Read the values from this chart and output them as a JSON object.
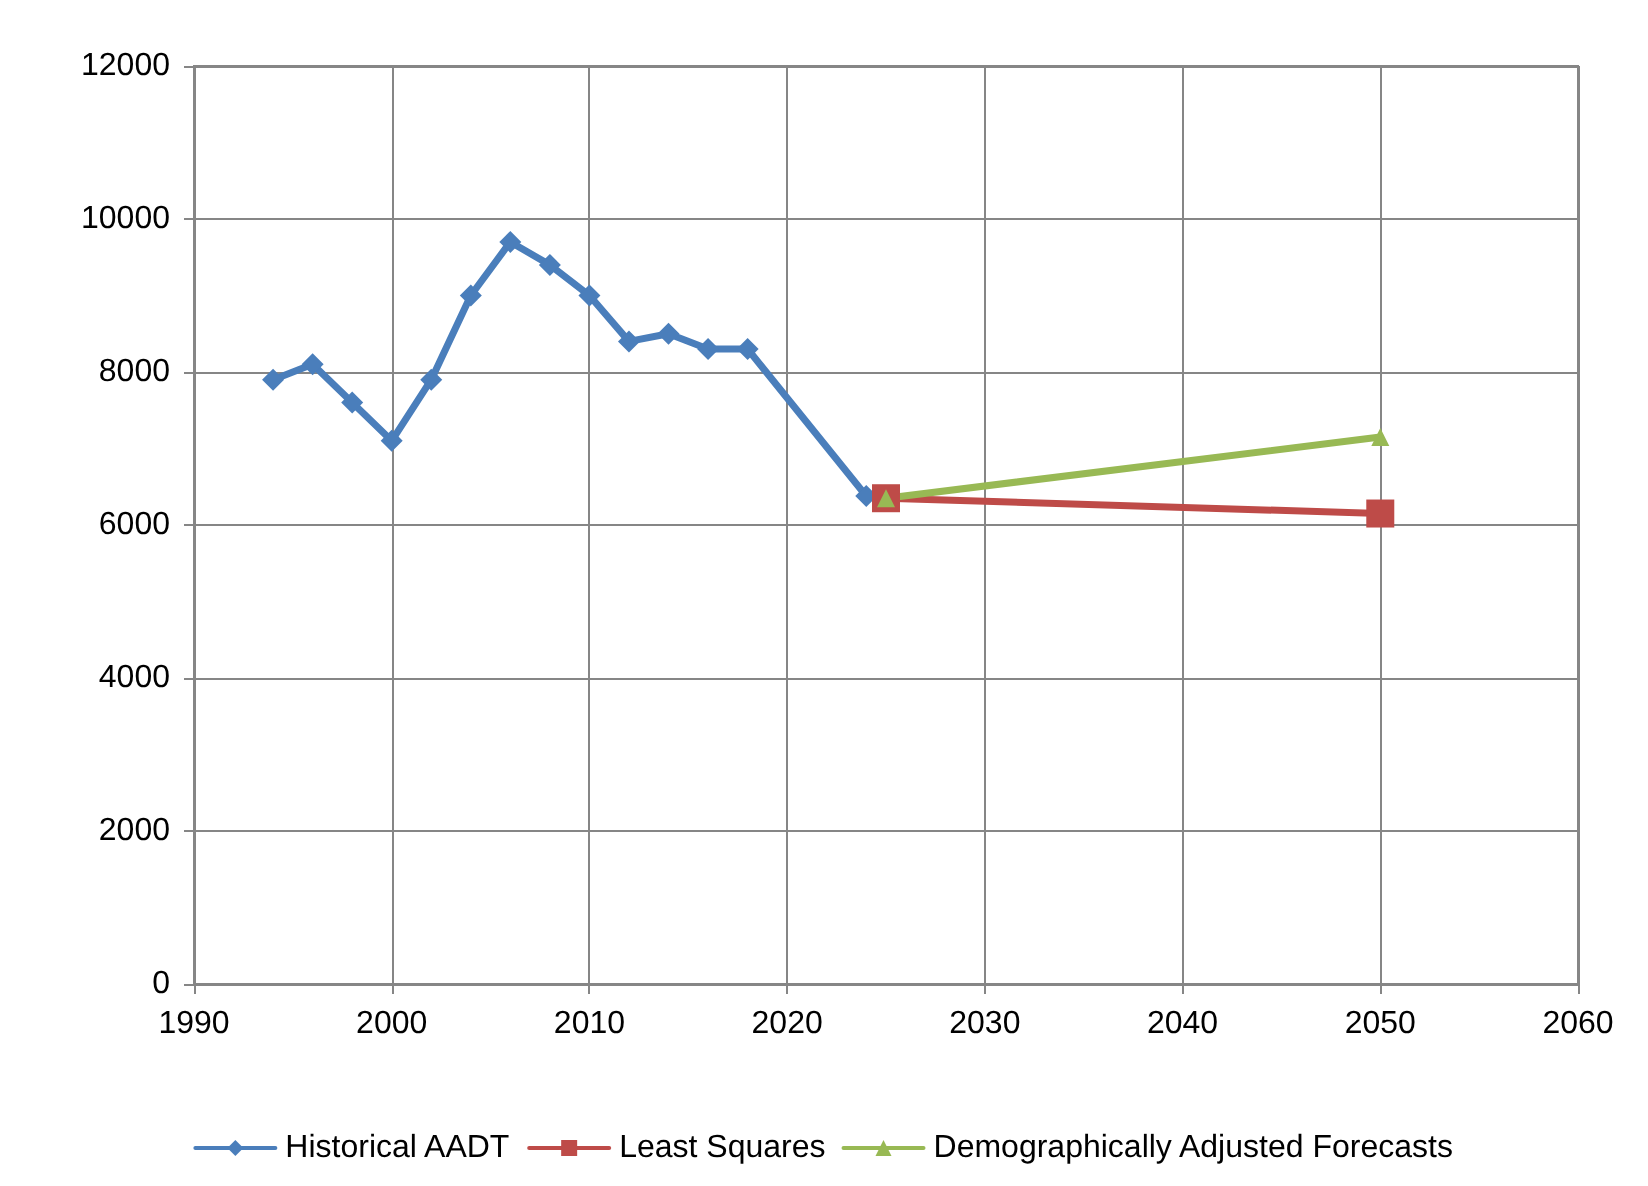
{
  "chart_data": {
    "type": "line",
    "xlim": [
      1990,
      2060
    ],
    "xticks": [
      1990,
      2000,
      2010,
      2020,
      2030,
      2040,
      2050,
      2060
    ],
    "ylim": [
      0,
      12000
    ],
    "yticks": [
      0,
      2000,
      4000,
      6000,
      8000,
      10000,
      12000
    ],
    "grid": true,
    "legend": "bottom",
    "series": [
      {
        "name": "Historical AADT",
        "color": "#4a7ebb",
        "marker": "diamond",
        "x": [
          1994,
          1996,
          1998,
          2000,
          2002,
          2004,
          2006,
          2008,
          2010,
          2012,
          2014,
          2016,
          2018,
          2024
        ],
        "values": [
          7900,
          8100,
          7600,
          7100,
          7900,
          9000,
          9700,
          9400,
          9000,
          8400,
          8500,
          8300,
          8300,
          6380
        ]
      },
      {
        "name": "Least Squares",
        "color": "#be4b48",
        "marker": "square",
        "x": [
          2025,
          2050
        ],
        "values": [
          6350,
          6150
        ]
      },
      {
        "name": "Demographically Adjusted Forecasts",
        "color": "#98b954",
        "marker": "triangle",
        "x": [
          2025,
          2050
        ],
        "values": [
          6350,
          7150
        ]
      }
    ]
  }
}
